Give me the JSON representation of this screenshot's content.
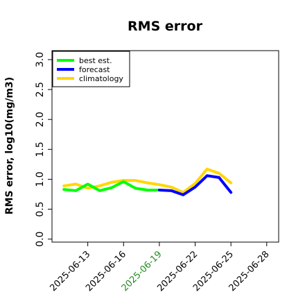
{
  "chart_data": {
    "type": "line",
    "title": "RMS error",
    "xlabel": "",
    "ylabel": "RMS error, log10(mg/m3)",
    "x": [
      "2025-06-11",
      "2025-06-12",
      "2025-06-13",
      "2025-06-14",
      "2025-06-15",
      "2025-06-16",
      "2025-06-17",
      "2025-06-18",
      "2025-06-19",
      "2025-06-20",
      "2025-06-21",
      "2025-06-22",
      "2025-06-23",
      "2025-06-24",
      "2025-06-25"
    ],
    "x_tick_labels": [
      "2025-06-13",
      "2025-06-16",
      "2025-06-19",
      "2025-06-22",
      "2025-06-25",
      "2025-06-28"
    ],
    "highlighted_tick": "2025-06-19",
    "highlight_color": "#228B22",
    "xlim": [
      "2025-06-10",
      "2025-06-29"
    ],
    "ylim": [
      -0.05,
      3.15
    ],
    "y_ticks": [
      "0.0",
      "0.5",
      "1.0",
      "1.5",
      "2.0",
      "2.5",
      "3.0"
    ],
    "grid": false,
    "legend_position": "top-left",
    "series": [
      {
        "name": "best est.",
        "color": "#00ff00",
        "x": [
          "2025-06-11",
          "2025-06-12",
          "2025-06-13",
          "2025-06-14",
          "2025-06-15",
          "2025-06-16",
          "2025-06-17",
          "2025-06-18",
          "2025-06-19"
        ],
        "values": [
          0.83,
          0.81,
          0.92,
          0.81,
          0.86,
          0.96,
          0.85,
          0.82,
          0.82
        ]
      },
      {
        "name": "forecast",
        "color": "#0000ff",
        "x": [
          "2025-06-19",
          "2025-06-20",
          "2025-06-21",
          "2025-06-22",
          "2025-06-23",
          "2025-06-24",
          "2025-06-25"
        ],
        "values": [
          0.82,
          0.81,
          0.74,
          0.87,
          1.06,
          1.03,
          0.78
        ]
      },
      {
        "name": "climatology",
        "color": "#ffd700",
        "x": [
          "2025-06-11",
          "2025-06-12",
          "2025-06-13",
          "2025-06-14",
          "2025-06-15",
          "2025-06-16",
          "2025-06-17",
          "2025-06-18",
          "2025-06-19",
          "2025-06-20",
          "2025-06-21",
          "2025-06-22",
          "2025-06-23",
          "2025-06-24",
          "2025-06-25"
        ],
        "values": [
          0.89,
          0.92,
          0.85,
          0.89,
          0.95,
          0.98,
          0.98,
          0.94,
          0.91,
          0.87,
          0.78,
          0.93,
          1.17,
          1.1,
          0.94
        ]
      }
    ]
  }
}
